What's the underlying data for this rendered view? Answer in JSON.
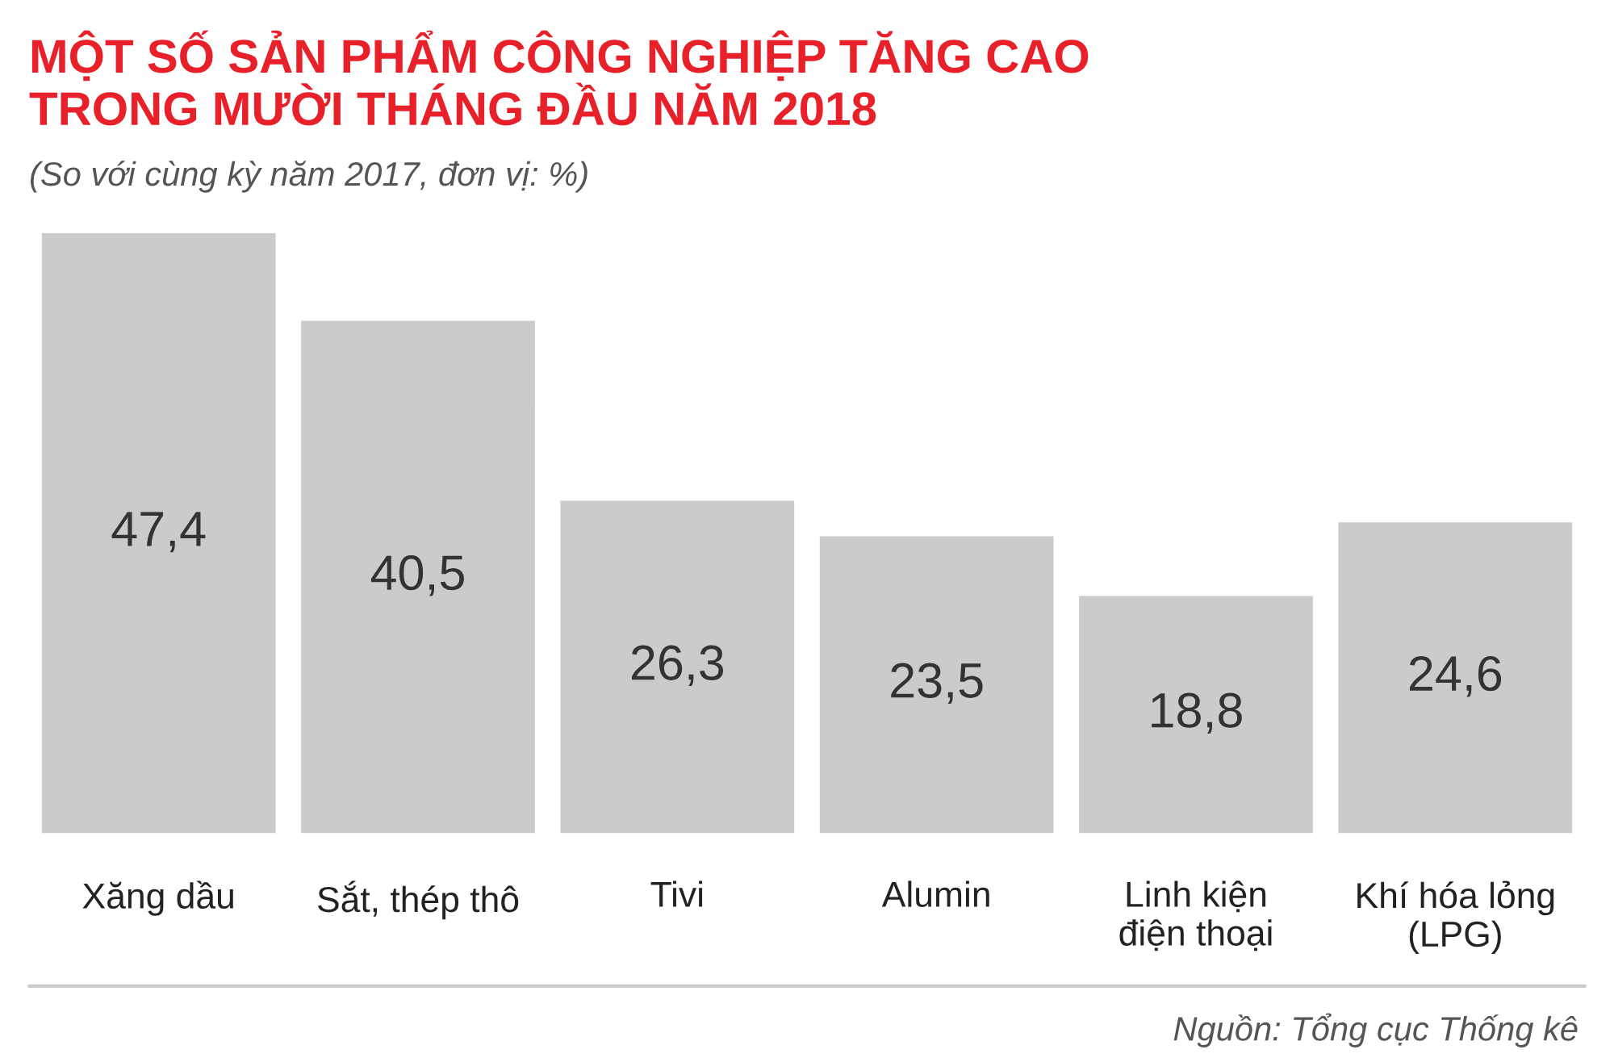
{
  "chart_data": {
    "type": "bar",
    "title": "MỘT SỐ SẢN PHẨM CÔNG NGHIỆP TĂNG CAO\nTRONG MƯỜI THÁNG ĐẦU NĂM 2018",
    "subtitle": "(So với cùng kỳ năm 2017, đơn vị: %)",
    "categories": [
      "Xăng dầu",
      "Sắt, thép thô",
      "Tivi",
      "Alumin",
      "Linh kiện\nđiện thoại",
      "Khí hóa lỏng\n(LPG)"
    ],
    "values": [
      47.4,
      40.5,
      26.3,
      23.5,
      18.8,
      24.6
    ],
    "value_labels": [
      "47,4",
      "40,5",
      "26,3",
      "23,5",
      "18,8",
      "24,6"
    ],
    "color": "#cccbcb",
    "grid": false,
    "legend": false,
    "annotations": [
      "Nguồn: Tổng cục Thống kê"
    ]
  }
}
